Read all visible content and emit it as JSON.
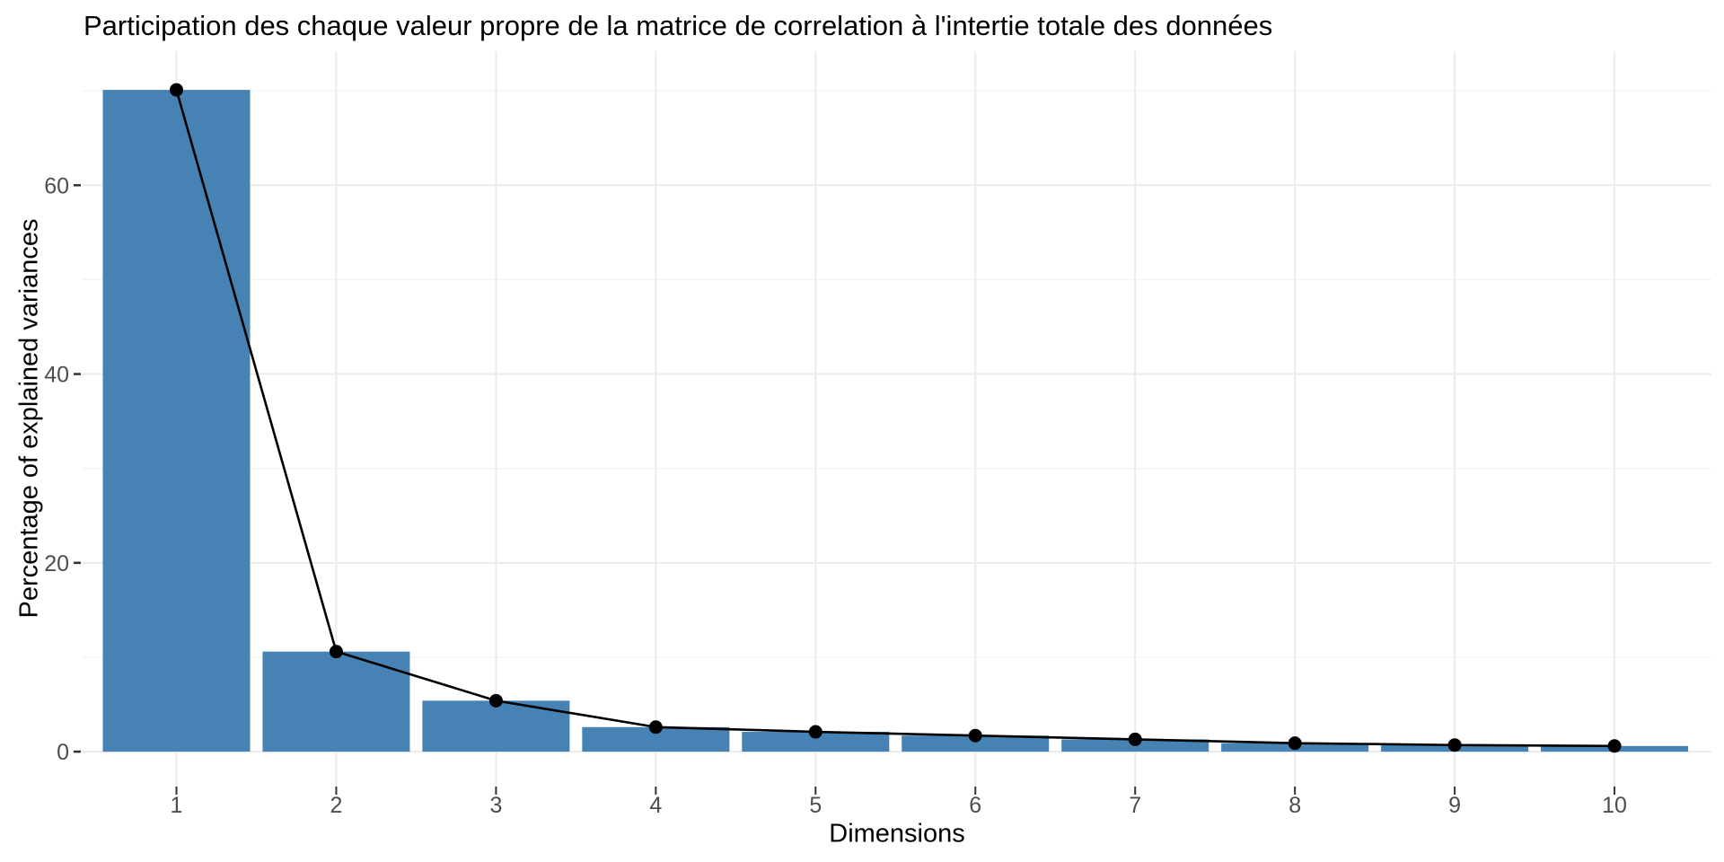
{
  "chart_data": {
    "type": "bar",
    "overlay": "line-with-points",
    "title": "Participation des chaque valeur propre de la matrice de correlation à l'intertie totale des données",
    "xlabel": "Dimensions",
    "ylabel": "Percentage of explained variances",
    "categories": [
      "1",
      "2",
      "3",
      "4",
      "5",
      "6",
      "7",
      "8",
      "9",
      "10"
    ],
    "values": [
      70.1,
      10.6,
      5.4,
      2.6,
      2.1,
      1.7,
      1.3,
      0.9,
      0.7,
      0.6
    ],
    "series": [
      {
        "name": "percentage-of-explained-variance-bars",
        "values": [
          70.1,
          10.6,
          5.4,
          2.6,
          2.1,
          1.7,
          1.3,
          0.9,
          0.7,
          0.6
        ]
      },
      {
        "name": "scree-line",
        "values": [
          70.1,
          10.6,
          5.4,
          2.6,
          2.1,
          1.7,
          1.3,
          0.9,
          0.7,
          0.6
        ]
      }
    ],
    "y_major_ticks": [
      0,
      20,
      40,
      60
    ],
    "y_minor_gridlines": [
      10,
      30,
      50,
      70
    ],
    "ylim": [
      -3.7,
      74.2
    ],
    "grid": true,
    "legend_position": "none",
    "colors": {
      "bar_fill": "#4682B4",
      "line": "#000000",
      "point": "#000000",
      "grid_major": "#EBEBEB",
      "grid_minor": "#F3F3F3",
      "tick_mark": "#333333",
      "tick_label": "#4D4D4D",
      "text": "#000000",
      "background": "#FFFFFF"
    }
  }
}
